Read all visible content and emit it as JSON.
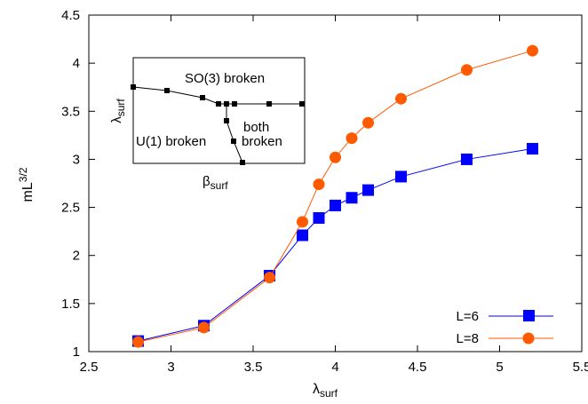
{
  "chart_data": {
    "type": "line",
    "xlabel": "λ",
    "xlabel_sub": "surf",
    "ylabel": "mL",
    "ylabel_sup": "3/2",
    "xlim": [
      2.5,
      5.5
    ],
    "ylim": [
      1,
      4.5
    ],
    "x_ticks": [
      2.5,
      3,
      3.5,
      4,
      4.5,
      5,
      5.5
    ],
    "y_ticks": [
      1,
      1.5,
      2,
      2.5,
      3,
      3.5,
      4,
      4.5
    ],
    "x_tick_labels": [
      "2.5",
      "3",
      "3.5",
      "4",
      "4.5",
      "5",
      "5.5"
    ],
    "y_tick_labels": [
      "1",
      "1.5",
      "2",
      "2.5",
      "3",
      "3.5",
      "4",
      "4.5"
    ],
    "grid": false,
    "legend_position": "bottom-right",
    "series": [
      {
        "name": "L=6",
        "marker": "square",
        "color": "#0000ff",
        "x": [
          2.8,
          3.2,
          3.6,
          3.8,
          3.9,
          4.0,
          4.1,
          4.2,
          4.4,
          4.8,
          5.2
        ],
        "y": [
          1.11,
          1.27,
          1.79,
          2.21,
          2.39,
          2.52,
          2.6,
          2.68,
          2.82,
          3.0,
          3.11
        ]
      },
      {
        "name": "L=8",
        "marker": "circle",
        "color": "#ff5a00",
        "x": [
          2.8,
          3.2,
          3.6,
          3.8,
          3.9,
          4.0,
          4.1,
          4.2,
          4.4,
          4.8,
          5.2
        ],
        "y": [
          1.1,
          1.25,
          1.77,
          2.35,
          2.74,
          3.02,
          3.22,
          3.38,
          3.63,
          3.93,
          4.13
        ]
      }
    ],
    "inset": {
      "type": "phase-diagram",
      "xlabel": "β",
      "xlabel_sub": "surf",
      "ylabel": "λ",
      "ylabel_sub": "surf",
      "labels": {
        "so3": "SO(3) broken",
        "u1": "U(1) broken",
        "both_1": "both",
        "both_2": "broken"
      },
      "color": "#000000"
    }
  }
}
